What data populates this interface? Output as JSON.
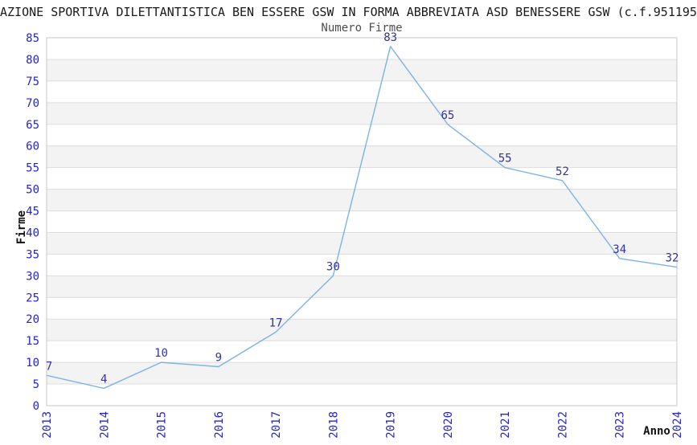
{
  "chart_data": {
    "type": "line",
    "title": "AZIONE SPORTIVA DILETTANTISTICA BEN ESSERE GSW IN FORMA ABBREVIATA ASD BENESSERE GSW (c.f.951195",
    "subtitle": "Numero Firme",
    "xlabel": "Anno",
    "ylabel": "Firme",
    "categories": [
      "2013",
      "2014",
      "2015",
      "2016",
      "2017",
      "2018",
      "2019",
      "2020",
      "2021",
      "2022",
      "2023",
      "2024"
    ],
    "series": [
      {
        "name": "Numero Firme",
        "values": [
          7,
          4,
          10,
          9,
          17,
          30,
          83,
          65,
          55,
          52,
          34,
          32
        ]
      }
    ],
    "ylim": [
      0,
      85
    ],
    "ytick_step": 5,
    "grid": true,
    "legend": "none",
    "colors": {
      "line": "#7db2e8",
      "tick_label": "#2424cc",
      "data_label": "#333399",
      "band": "#f3f3f3",
      "gridline": "#dcdcdc",
      "plot_border": "#c8c8c8",
      "title": "#1a1a1a",
      "subtitle": "#4d4d4d",
      "axis_title": "#111111"
    }
  }
}
